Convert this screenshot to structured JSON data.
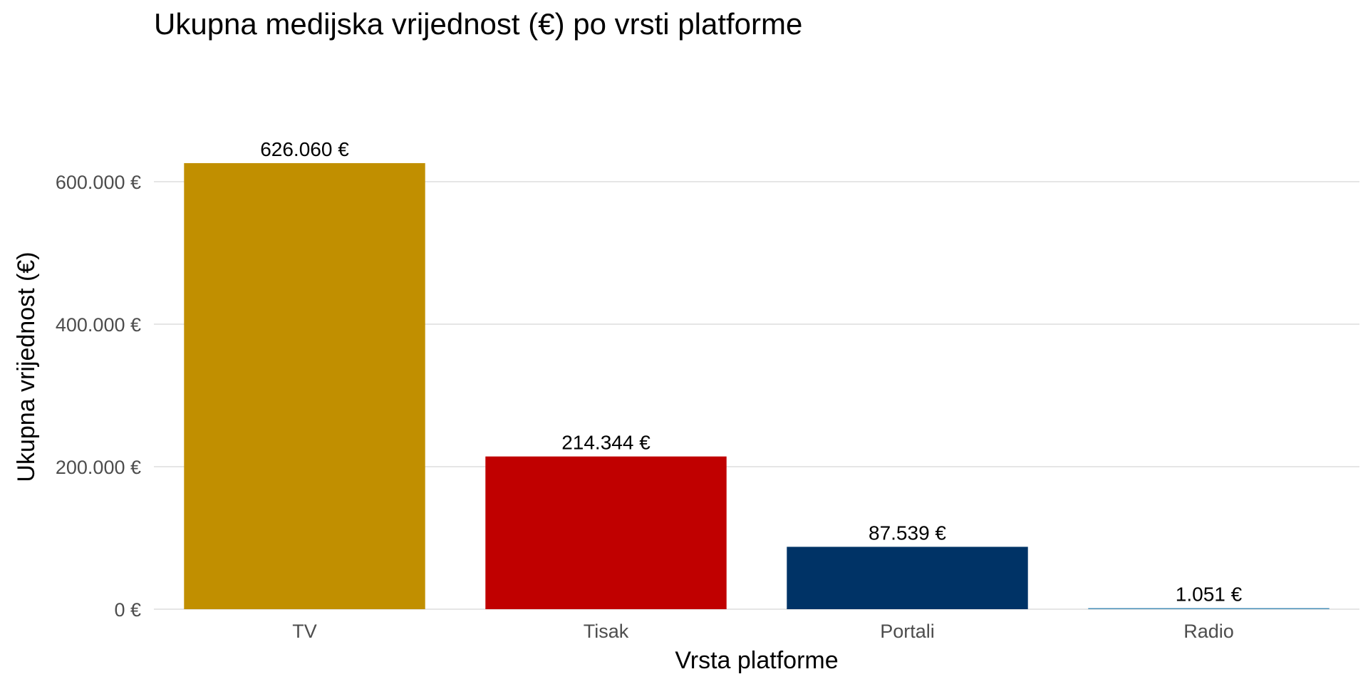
{
  "chart_data": {
    "type": "bar",
    "title": "Ukupna medijska vrijednost (€) po vrsti platforme",
    "xlabel": "Vrsta platforme",
    "ylabel": "Ukupna vrijednost (€)",
    "categories": [
      "TV",
      "Tisak",
      "Portali",
      "Radio"
    ],
    "values": [
      626060,
      214344,
      87539,
      1051
    ],
    "value_labels": [
      "626.060 €",
      "214.344 €",
      "87.539 €",
      "1.051 €"
    ],
    "colors": [
      "#C18F00",
      "#C00000",
      "#003366",
      "#4A90B8"
    ],
    "ylim": [
      0,
      680000
    ],
    "yticks": [
      0,
      200000,
      400000,
      600000
    ],
    "ytick_labels": [
      "0 €",
      "200.000 €",
      "400.000 €",
      "600.000 €"
    ],
    "grid": true,
    "legend": "none"
  }
}
